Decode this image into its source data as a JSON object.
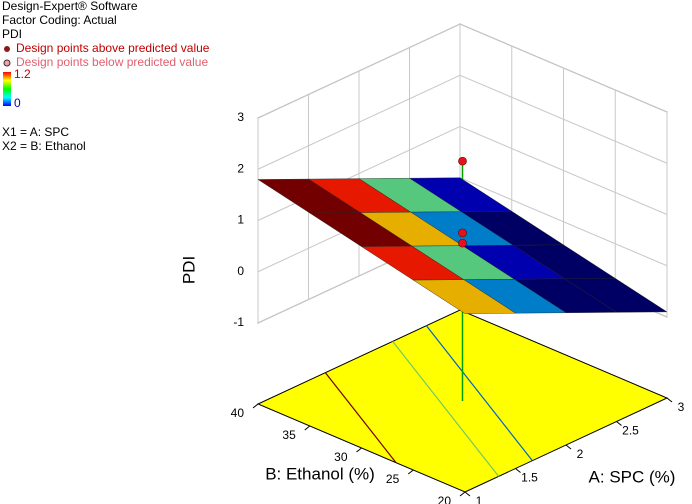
{
  "chart_data": {
    "type": "surface3d",
    "software": "Design-Expert® Software",
    "coding": "Factor Coding: Actual",
    "response": "PDI",
    "above_label": "Design points above predicted value",
    "below_label": "Design points below predicted value",
    "colorbar": {
      "max": 1.2,
      "min": 0
    },
    "x1_label": "X1 = A: SPC",
    "x2_label": "X2 = B: Ethanol",
    "xlabel": "A: SPC (%)",
    "ylabel": "B: Ethanol (%)",
    "zlabel": "PDI",
    "xlim": [
      1,
      3
    ],
    "xticks": [
      1,
      1.5,
      2,
      2.5,
      3
    ],
    "ylim": [
      20,
      40
    ],
    "yticks": [
      20,
      25,
      30,
      35,
      40
    ],
    "zlim": [
      -1,
      3
    ],
    "zticks": [
      -1,
      0,
      1,
      2,
      3
    ],
    "surface": {
      "x": [
        1,
        1.5,
        2,
        2.5,
        3
      ],
      "y": [
        20,
        25,
        30,
        35,
        40
      ],
      "z": [
        [
          0.9,
          1.125,
          1.35,
          1.575,
          1.8
        ],
        [
          0.45,
          0.675,
          0.9,
          1.125,
          1.35
        ],
        [
          0,
          0.225,
          0.45,
          0.675,
          0.9
        ],
        [
          -0.45,
          -0.225,
          0,
          0.225,
          0.45
        ],
        [
          -0.9,
          -0.675,
          -0.45,
          -0.225,
          0
        ]
      ]
    },
    "contours": [
      0,
      0.3,
      0.6,
      0.9,
      1.2
    ],
    "points_above": {
      "color": "#e8101a",
      "x": [
        2,
        2,
        2
      ],
      "y": [
        30,
        30,
        30
      ],
      "z": [
        2.1,
        0.7,
        0.5
      ]
    },
    "points_below": {
      "color": "#f4a0a8",
      "x": [
        2,
        2
      ],
      "y": [
        30,
        30
      ],
      "z": [
        0.3,
        0.15
      ]
    },
    "floor_color": "#ffff00"
  }
}
